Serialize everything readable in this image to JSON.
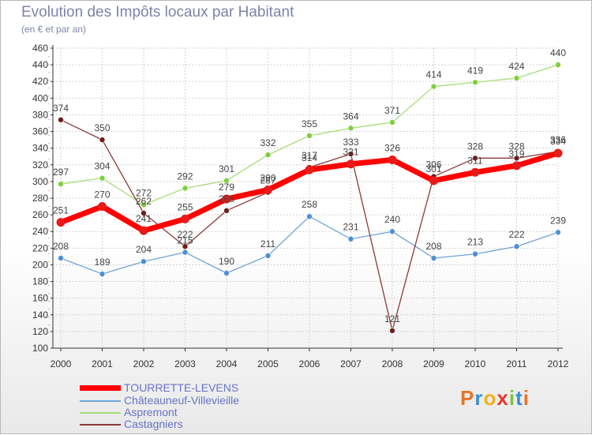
{
  "header": {
    "title": "Evolution des Impôts locaux par Habitant",
    "subtitle": "(en € et par an)"
  },
  "logo": {
    "text": "Proxiti"
  },
  "colors": {
    "grid": "#d4d4d4",
    "axis": "#333333",
    "tick_text": "#333333",
    "label_text": "#444444",
    "title": "#7f83a8",
    "legend_text": "#6873c8"
  },
  "chart_data": {
    "type": "line",
    "title": "Evolution des Impôts locaux par Habitant",
    "subtitle": "(en € et par an)",
    "xlabel": "",
    "ylabel": "",
    "x": [
      "2000",
      "2001",
      "2002",
      "2003",
      "2004",
      "2005",
      "2006",
      "2007",
      "2008",
      "2009",
      "2010",
      "2011",
      "2012"
    ],
    "ylim": [
      100,
      460
    ],
    "ystep": 20,
    "grid": true,
    "legend": "bottom-left",
    "series": [
      {
        "name": "TOURRETTE-LEVENS",
        "color": "#ff0000",
        "marker": "#e81a1a",
        "width": 7,
        "values": [
          251,
          270,
          241,
          255,
          279,
          290,
          314,
          321,
          326,
          301,
          311,
          319,
          334
        ]
      },
      {
        "name": "Châteauneuf-Villevieille",
        "color": "#6fa3d6",
        "marker": "#4d8fd8",
        "width": 1.3,
        "values": [
          208,
          189,
          204,
          215,
          190,
          211,
          258,
          231,
          240,
          208,
          213,
          222,
          239
        ]
      },
      {
        "name": "Aspremont",
        "color": "#a7dd76",
        "marker": "#7fcf3d",
        "width": 1.3,
        "values": [
          297,
          304,
          272,
          292,
          301,
          332,
          355,
          364,
          371,
          414,
          419,
          424,
          440
        ]
      },
      {
        "name": "Castagniers",
        "color": "#8b3a3a",
        "marker": "#6e1c1c",
        "width": 1.3,
        "values": [
          374,
          350,
          262,
          222,
          265,
          287,
          317,
          333,
          121,
          306,
          328,
          328,
          336
        ]
      }
    ]
  }
}
